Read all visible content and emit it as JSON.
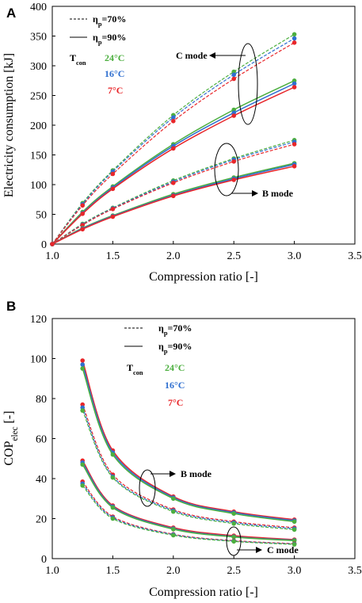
{
  "colors": {
    "T24": "#4caf3f",
    "T16": "#2f6fd0",
    "T7": "#e8262a"
  },
  "chart_data": [
    {
      "panel": "A",
      "type": "line",
      "xlabel": "Compression ratio [-]",
      "ylabel": "Electricity consumption [kJ]",
      "xlim": [
        1.0,
        3.5
      ],
      "ylim": [
        0,
        400
      ],
      "xticks": [
        "1.0",
        "1.5",
        "2.0",
        "2.5",
        "3.0",
        "3.5"
      ],
      "yticks": [
        "0",
        "50",
        "100",
        "150",
        "200",
        "250",
        "300",
        "350",
        "400"
      ],
      "grid": false,
      "legend": {
        "dashed_label": "ηp=70%",
        "solid_label": "ηp=90%",
        "tcon_label": "Tcon",
        "temps": [
          "24°C",
          "16°C",
          "7°C"
        ]
      },
      "annotations": [
        "C mode",
        "B mode"
      ],
      "x": [
        1.0,
        1.25,
        1.5,
        2.0,
        2.5,
        3.0
      ],
      "series": [
        {
          "mode": "C",
          "eta": "70%",
          "temp": "24°C",
          "values": [
            0,
            69,
            124,
            217,
            290,
            353
          ]
        },
        {
          "mode": "C",
          "eta": "70%",
          "temp": "16°C",
          "values": [
            0,
            67,
            122,
            213,
            285,
            346
          ]
        },
        {
          "mode": "C",
          "eta": "70%",
          "temp": "7°C",
          "values": [
            0,
            65,
            118,
            207,
            278,
            339
          ]
        },
        {
          "mode": "C",
          "eta": "90%",
          "temp": "24°C",
          "values": [
            0,
            54,
            97,
            168,
            226,
            275
          ]
        },
        {
          "mode": "C",
          "eta": "90%",
          "temp": "16°C",
          "values": [
            0,
            52,
            95,
            165,
            221,
            270
          ]
        },
        {
          "mode": "C",
          "eta": "90%",
          "temp": "7°C",
          "values": [
            0,
            51,
            93,
            161,
            216,
            264
          ]
        },
        {
          "mode": "B",
          "eta": "70%",
          "temp": "24°C",
          "values": [
            0,
            34,
            61,
            107,
            144,
            175
          ]
        },
        {
          "mode": "B",
          "eta": "70%",
          "temp": "16°C",
          "values": [
            0,
            33,
            60,
            105,
            142,
            172
          ]
        },
        {
          "mode": "B",
          "eta": "70%",
          "temp": "7°C",
          "values": [
            0,
            32,
            59,
            103,
            139,
            168
          ]
        },
        {
          "mode": "B",
          "eta": "90%",
          "temp": "24°C",
          "values": [
            0,
            27,
            48,
            84,
            112,
            136
          ]
        },
        {
          "mode": "B",
          "eta": "90%",
          "temp": "16°C",
          "values": [
            0,
            26,
            47,
            82,
            110,
            134
          ]
        },
        {
          "mode": "B",
          "eta": "90%",
          "temp": "7°C",
          "values": [
            0,
            25,
            46,
            81,
            108,
            131
          ]
        }
      ]
    },
    {
      "panel": "B",
      "type": "line",
      "xlabel": "Compression ratio [-]",
      "ylabel": "COPelec [-]",
      "xlim": [
        1.0,
        3.5
      ],
      "ylim": [
        0,
        120
      ],
      "xticks": [
        "1.0",
        "1.5",
        "2.0",
        "2.5",
        "3.0",
        "3.5"
      ],
      "yticks": [
        "0",
        "20",
        "40",
        "60",
        "80",
        "100",
        "120"
      ],
      "grid": false,
      "legend": {
        "dashed_label": "ηp=70%",
        "solid_label": "ηp=90%",
        "tcon_label": "Tcon",
        "temps": [
          "24°C",
          "16°C",
          "7°C"
        ]
      },
      "annotations": [
        "B mode",
        "C mode"
      ],
      "x": [
        1.25,
        1.5,
        2.0,
        2.5,
        3.0
      ],
      "series": [
        {
          "mode": "B",
          "eta": "90%",
          "temp": "7°C",
          "values": [
            99,
            54,
            31,
            23.5,
            19.5
          ]
        },
        {
          "mode": "B",
          "eta": "90%",
          "temp": "16°C",
          "values": [
            97,
            53,
            30.5,
            23,
            19
          ]
        },
        {
          "mode": "B",
          "eta": "90%",
          "temp": "24°C",
          "values": [
            95,
            52,
            30,
            22.5,
            18.5
          ]
        },
        {
          "mode": "B",
          "eta": "70%",
          "temp": "7°C",
          "values": [
            77,
            42,
            24.5,
            18.5,
            15.5
          ]
        },
        {
          "mode": "B",
          "eta": "70%",
          "temp": "16°C",
          "values": [
            75.5,
            41,
            24,
            18,
            15
          ]
        },
        {
          "mode": "B",
          "eta": "70%",
          "temp": "24°C",
          "values": [
            74,
            40.5,
            23.5,
            17.5,
            14.5
          ]
        },
        {
          "mode": "C",
          "eta": "90%",
          "temp": "7°C",
          "values": [
            49,
            26.5,
            15.5,
            11.5,
            9.5
          ]
        },
        {
          "mode": "C",
          "eta": "90%",
          "temp": "16°C",
          "values": [
            48,
            26,
            15,
            11,
            9.2
          ]
        },
        {
          "mode": "C",
          "eta": "90%",
          "temp": "24°C",
          "values": [
            47,
            25.5,
            14.7,
            10.8,
            9
          ]
        },
        {
          "mode": "C",
          "eta": "70%",
          "temp": "7°C",
          "values": [
            38.5,
            21,
            12.2,
            9,
            7.5
          ]
        },
        {
          "mode": "C",
          "eta": "70%",
          "temp": "16°C",
          "values": [
            37.5,
            20.5,
            12,
            8.8,
            7.3
          ]
        },
        {
          "mode": "C",
          "eta": "70%",
          "temp": "24°C",
          "values": [
            36.5,
            20,
            11.7,
            8.6,
            7.1
          ]
        }
      ]
    }
  ]
}
